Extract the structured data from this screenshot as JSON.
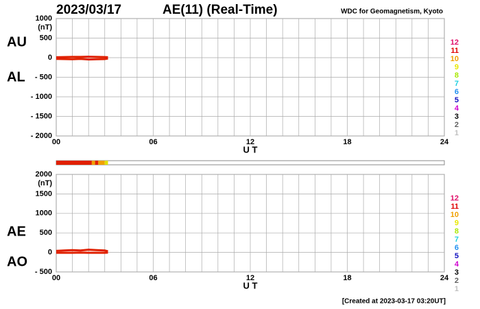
{
  "header": {
    "date": "2023/03/17",
    "title": "AE(11) (Real-Time)",
    "source": "WDC for Geomagnetism, Kyoto"
  },
  "footer": "[Created at 2023-03-17 03:20UT]",
  "chart_data": [
    {
      "type": "line",
      "unit": "(nT)",
      "xlabel": "U T",
      "xlim": [
        0,
        24
      ],
      "xticks": [
        {
          "value": 0,
          "label": "00"
        },
        {
          "value": 6,
          "label": "06"
        },
        {
          "value": 12,
          "label": "12"
        },
        {
          "value": 18,
          "label": "18"
        },
        {
          "value": 24,
          "label": "24"
        }
      ],
      "xminorticks": [
        1,
        2,
        3,
        4,
        5,
        7,
        8,
        9,
        10,
        11,
        13,
        14,
        15,
        16,
        17,
        19,
        20,
        21,
        22,
        23
      ],
      "ylim": [
        -2000,
        1000
      ],
      "yticks": [
        1000,
        500,
        0,
        {
          "value": -500,
          "label": "- 500"
        },
        {
          "value": -1000,
          "label": "- 1000"
        },
        {
          "value": -1500,
          "label": "- 1500"
        },
        {
          "value": -2000,
          "label": "- 2000"
        }
      ],
      "grid": true,
      "x": [
        0,
        0.5,
        1,
        1.5,
        2,
        2.5,
        3,
        3.2
      ],
      "series": [
        {
          "name": "AU",
          "color": "#e02000",
          "values": [
            10,
            15,
            20,
            20,
            25,
            20,
            15,
            10
          ]
        },
        {
          "name": "AL",
          "color": "#e02000",
          "values": [
            -30,
            -35,
            -40,
            -30,
            -45,
            -40,
            -35,
            -20
          ]
        }
      ],
      "legend": [
        {
          "label": "12",
          "color": "#e0106a"
        },
        {
          "label": "11",
          "color": "#e00000"
        },
        {
          "label": "10",
          "color": "#f0a000"
        },
        {
          "label": "9",
          "color": "#e8e800"
        },
        {
          "label": "8",
          "color": "#a8e800"
        },
        {
          "label": "7",
          "color": "#20d0e0"
        },
        {
          "label": "6",
          "color": "#2090f0"
        },
        {
          "label": "5",
          "color": "#1010c0"
        },
        {
          "label": "4",
          "color": "#d000d0"
        },
        {
          "label": "3",
          "color": "#000000"
        },
        {
          "label": "2",
          "color": "#606060"
        },
        {
          "label": "1",
          "color": "#c0c0c0"
        }
      ]
    },
    {
      "type": "line",
      "unit": "(nT)",
      "xlabel": "U T",
      "xlim": [
        0,
        24
      ],
      "xticks": [
        {
          "value": 0,
          "label": "00"
        },
        {
          "value": 6,
          "label": "06"
        },
        {
          "value": 12,
          "label": "12"
        },
        {
          "value": 18,
          "label": "18"
        },
        {
          "value": 24,
          "label": "24"
        }
      ],
      "xminorticks": [
        1,
        2,
        3,
        4,
        5,
        7,
        8,
        9,
        10,
        11,
        13,
        14,
        15,
        16,
        17,
        19,
        20,
        21,
        22,
        23
      ],
      "ylim": [
        -500,
        2000
      ],
      "yticks": [
        2000,
        1500,
        1000,
        500,
        0,
        {
          "value": -500,
          "label": "- 500"
        }
      ],
      "grid": true,
      "x": [
        0,
        0.5,
        1,
        1.5,
        2,
        2.5,
        3,
        3.2
      ],
      "series": [
        {
          "name": "AE",
          "color": "#e02000",
          "values": [
            40,
            50,
            60,
            50,
            70,
            60,
            50,
            30
          ]
        },
        {
          "name": "AO",
          "color": "#e02000",
          "values": [
            -10,
            -10,
            -10,
            -5,
            -10,
            -10,
            -10,
            -5
          ]
        }
      ],
      "strip": [
        {
          "start": 0,
          "end": 2.2,
          "color": "#e02000"
        },
        {
          "start": 2.2,
          "end": 2.4,
          "color": "#f0a000"
        },
        {
          "start": 2.4,
          "end": 2.6,
          "color": "#e02000"
        },
        {
          "start": 2.6,
          "end": 3.0,
          "color": "#f0a000"
        },
        {
          "start": 3.0,
          "end": 3.2,
          "color": "#e0e000"
        }
      ],
      "legend": [
        {
          "label": "12",
          "color": "#e0106a"
        },
        {
          "label": "11",
          "color": "#e00000"
        },
        {
          "label": "10",
          "color": "#f0a000"
        },
        {
          "label": "9",
          "color": "#e8e800"
        },
        {
          "label": "8",
          "color": "#a8e800"
        },
        {
          "label": "7",
          "color": "#20d0e0"
        },
        {
          "label": "6",
          "color": "#2090f0"
        },
        {
          "label": "5",
          "color": "#1010c0"
        },
        {
          "label": "4",
          "color": "#d000d0"
        },
        {
          "label": "3",
          "color": "#000000"
        },
        {
          "label": "2",
          "color": "#606060"
        },
        {
          "label": "1",
          "color": "#c0c0c0"
        }
      ]
    }
  ]
}
